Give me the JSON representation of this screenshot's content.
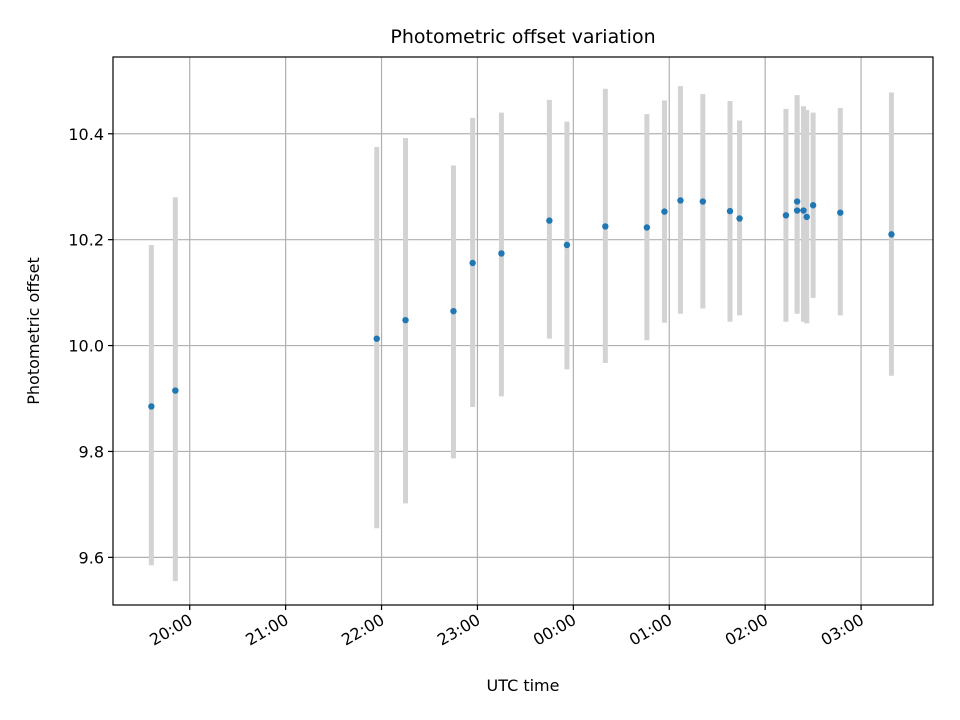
{
  "chart_data": {
    "type": "scatter",
    "title": "Photometric offset variation",
    "xlabel": "UTC time",
    "ylabel": "Photometric offset",
    "x_unit": "time of day (UTC)",
    "xlim": [
      "19:12",
      "03:45"
    ],
    "ylim": [
      9.51,
      10.545
    ],
    "grid": true,
    "colors": {
      "point": "#1f77b4",
      "errorbar": "#d3d3d3",
      "grid": "#b0b0b0",
      "axes": "#000000"
    },
    "x_ticks": [
      "20:00",
      "21:00",
      "22:00",
      "23:00",
      "00:00",
      "01:00",
      "02:00",
      "03:00"
    ],
    "y_ticks": [
      "9.6",
      "9.8",
      "10.0",
      "10.2",
      "10.4"
    ],
    "y_tick_values": [
      9.6,
      9.8,
      10.0,
      10.2,
      10.4
    ],
    "series": [
      {
        "points": [
          {
            "x": "19:36",
            "y": 9.885,
            "lo": 9.585,
            "hi": 10.19
          },
          {
            "x": "19:51",
            "y": 9.915,
            "lo": 9.555,
            "hi": 10.28
          },
          {
            "x": "21:57",
            "y": 10.013,
            "lo": 9.655,
            "hi": 10.375
          },
          {
            "x": "22:15",
            "y": 10.048,
            "lo": 9.702,
            "hi": 10.392
          },
          {
            "x": "22:45",
            "y": 10.065,
            "lo": 9.787,
            "hi": 10.34
          },
          {
            "x": "22:57",
            "y": 10.156,
            "lo": 9.884,
            "hi": 10.43
          },
          {
            "x": "23:15",
            "y": 10.174,
            "lo": 9.904,
            "hi": 10.44
          },
          {
            "x": "23:45",
            "y": 10.236,
            "lo": 10.013,
            "hi": 10.464
          },
          {
            "x": "23:56",
            "y": 10.19,
            "lo": 9.955,
            "hi": 10.423
          },
          {
            "x": "00:20",
            "y": 10.225,
            "lo": 9.967,
            "hi": 10.485
          },
          {
            "x": "00:46",
            "y": 10.223,
            "lo": 10.01,
            "hi": 10.437
          },
          {
            "x": "00:57",
            "y": 10.253,
            "lo": 10.043,
            "hi": 10.463
          },
          {
            "x": "01:07",
            "y": 10.274,
            "lo": 10.06,
            "hi": 10.49
          },
          {
            "x": "01:21",
            "y": 10.272,
            "lo": 10.07,
            "hi": 10.475
          },
          {
            "x": "01:38",
            "y": 10.254,
            "lo": 10.045,
            "hi": 10.462
          },
          {
            "x": "01:44",
            "y": 10.24,
            "lo": 10.057,
            "hi": 10.425
          },
          {
            "x": "02:13",
            "y": 10.246,
            "lo": 10.045,
            "hi": 10.447
          },
          {
            "x": "02:20",
            "y": 10.255,
            "lo": 10.067,
            "hi": 10.473
          },
          {
            "x": "02:20",
            "y": 10.272,
            "lo": 10.06,
            "hi": 10.46
          },
          {
            "x": "02:24",
            "y": 10.255,
            "lo": 10.045,
            "hi": 10.452
          },
          {
            "x": "02:26",
            "y": 10.243,
            "lo": 10.042,
            "hi": 10.445
          },
          {
            "x": "02:30",
            "y": 10.265,
            "lo": 10.09,
            "hi": 10.44
          },
          {
            "x": "02:47",
            "y": 10.251,
            "lo": 10.057,
            "hi": 10.449
          },
          {
            "x": "03:19",
            "y": 10.21,
            "lo": 9.943,
            "hi": 10.478
          }
        ]
      }
    ]
  }
}
